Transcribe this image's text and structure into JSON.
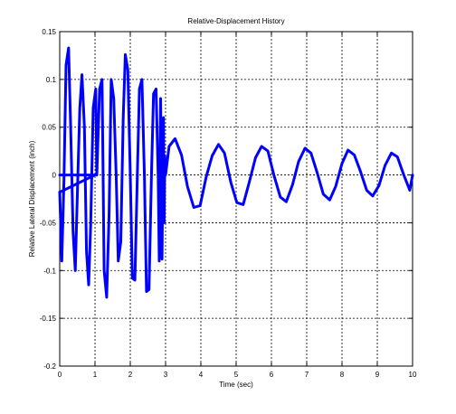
{
  "chart_data": {
    "type": "line",
    "title": "Relative-Displacement History",
    "xlabel": "Time (sec)",
    "ylabel": "Relative Lateral Displacement (inch)",
    "xlim": [
      0,
      10
    ],
    "ylim": [
      -0.2,
      0.15
    ],
    "xticks": [
      0,
      1,
      2,
      3,
      4,
      5,
      6,
      7,
      8,
      9,
      10
    ],
    "yticks": [
      0.15,
      0.1,
      0.05,
      0,
      -0.05,
      -0.1,
      -0.15,
      -0.2
    ],
    "xtick_labels": [
      "0",
      "1",
      "2",
      "3",
      "4",
      "5",
      "6",
      "7",
      "8",
      "9",
      "10"
    ],
    "ytick_labels": [
      "0.15",
      "0.1",
      "0.05",
      "0",
      "-0.05",
      "-0.1",
      "-0.15",
      "-0.2"
    ],
    "grid": true,
    "grid_style": "dashed",
    "series": [
      {
        "color": "#0000ff",
        "x": [
          0,
          0.06,
          0.12,
          0.18,
          0.25,
          0.31,
          0.38,
          0.44,
          0.5,
          0.57,
          0.63,
          0.7,
          0.76,
          0.82,
          0.88,
          0.95,
          1.02,
          1.05,
          1.13,
          1.2,
          1.26,
          1.33,
          1.4,
          1.46,
          1.53,
          1.6,
          1.66,
          1.73,
          1.8,
          1.86,
          1.93,
          2.0,
          2.06,
          2.13,
          2.2,
          2.26,
          2.33,
          2.4,
          2.46,
          2.53,
          2.6,
          2.66,
          2.73,
          2.79,
          2.82,
          2.84,
          2.86,
          2.88,
          2.9,
          2.92,
          2.94,
          2.96,
          2.98,
          3.0,
          3.1,
          3.27,
          3.45,
          3.62,
          3.8,
          3.98,
          4.15,
          4.32,
          4.5,
          4.67,
          4.85,
          5.02,
          5.2,
          5.37,
          5.55,
          5.72,
          5.9,
          6.07,
          6.25,
          6.42,
          6.6,
          6.77,
          6.95,
          7.12,
          7.3,
          7.47,
          7.65,
          7.82,
          8.0,
          8.17,
          8.35,
          8.52,
          8.7,
          8.87,
          9.05,
          9.22,
          9.4,
          9.57,
          9.75,
          9.92,
          10.0
        ],
        "y": [
          -0.018,
          -0.09,
          -0.005,
          0.115,
          0.133,
          0.05,
          -0.06,
          -0.1,
          -0.02,
          0.07,
          0.105,
          0.05,
          -0.08,
          -0.115,
          -0.05,
          0.07,
          0.09,
          0.0,
          0.09,
          0.1,
          -0.1,
          -0.128,
          -0.04,
          0.1,
          0.08,
          0.0,
          -0.09,
          -0.07,
          0.06,
          0.126,
          0.11,
          0.0,
          -0.108,
          -0.11,
          0.0,
          0.09,
          0.1,
          0.0,
          -0.122,
          -0.12,
          0.0,
          0.085,
          0.09,
          0.0,
          -0.09,
          0.0,
          0.08,
          0.0,
          -0.088,
          0.0,
          0.06,
          -0.05,
          0.02,
          0.0,
          0.03,
          0.038,
          0.021,
          -0.012,
          -0.034,
          -0.032,
          -0.002,
          0.02,
          0.032,
          0.023,
          -0.008,
          -0.029,
          -0.031,
          -0.008,
          0.018,
          0.03,
          0.025,
          0.0,
          -0.023,
          -0.028,
          -0.01,
          0.014,
          0.028,
          0.023,
          0.002,
          -0.02,
          -0.026,
          -0.012,
          0.012,
          0.026,
          0.021,
          0.004,
          -0.016,
          -0.022,
          -0.011,
          0.01,
          0.023,
          0.019,
          0.0,
          -0.016,
          0.0
        ]
      }
    ],
    "transient_segments": [
      {
        "x": [
          0.0,
          1.0
        ],
        "y": [
          0.0,
          0.0
        ]
      },
      {
        "x": [
          0.0,
          1.0
        ],
        "y": [
          -0.018,
          0.0
        ]
      }
    ]
  }
}
